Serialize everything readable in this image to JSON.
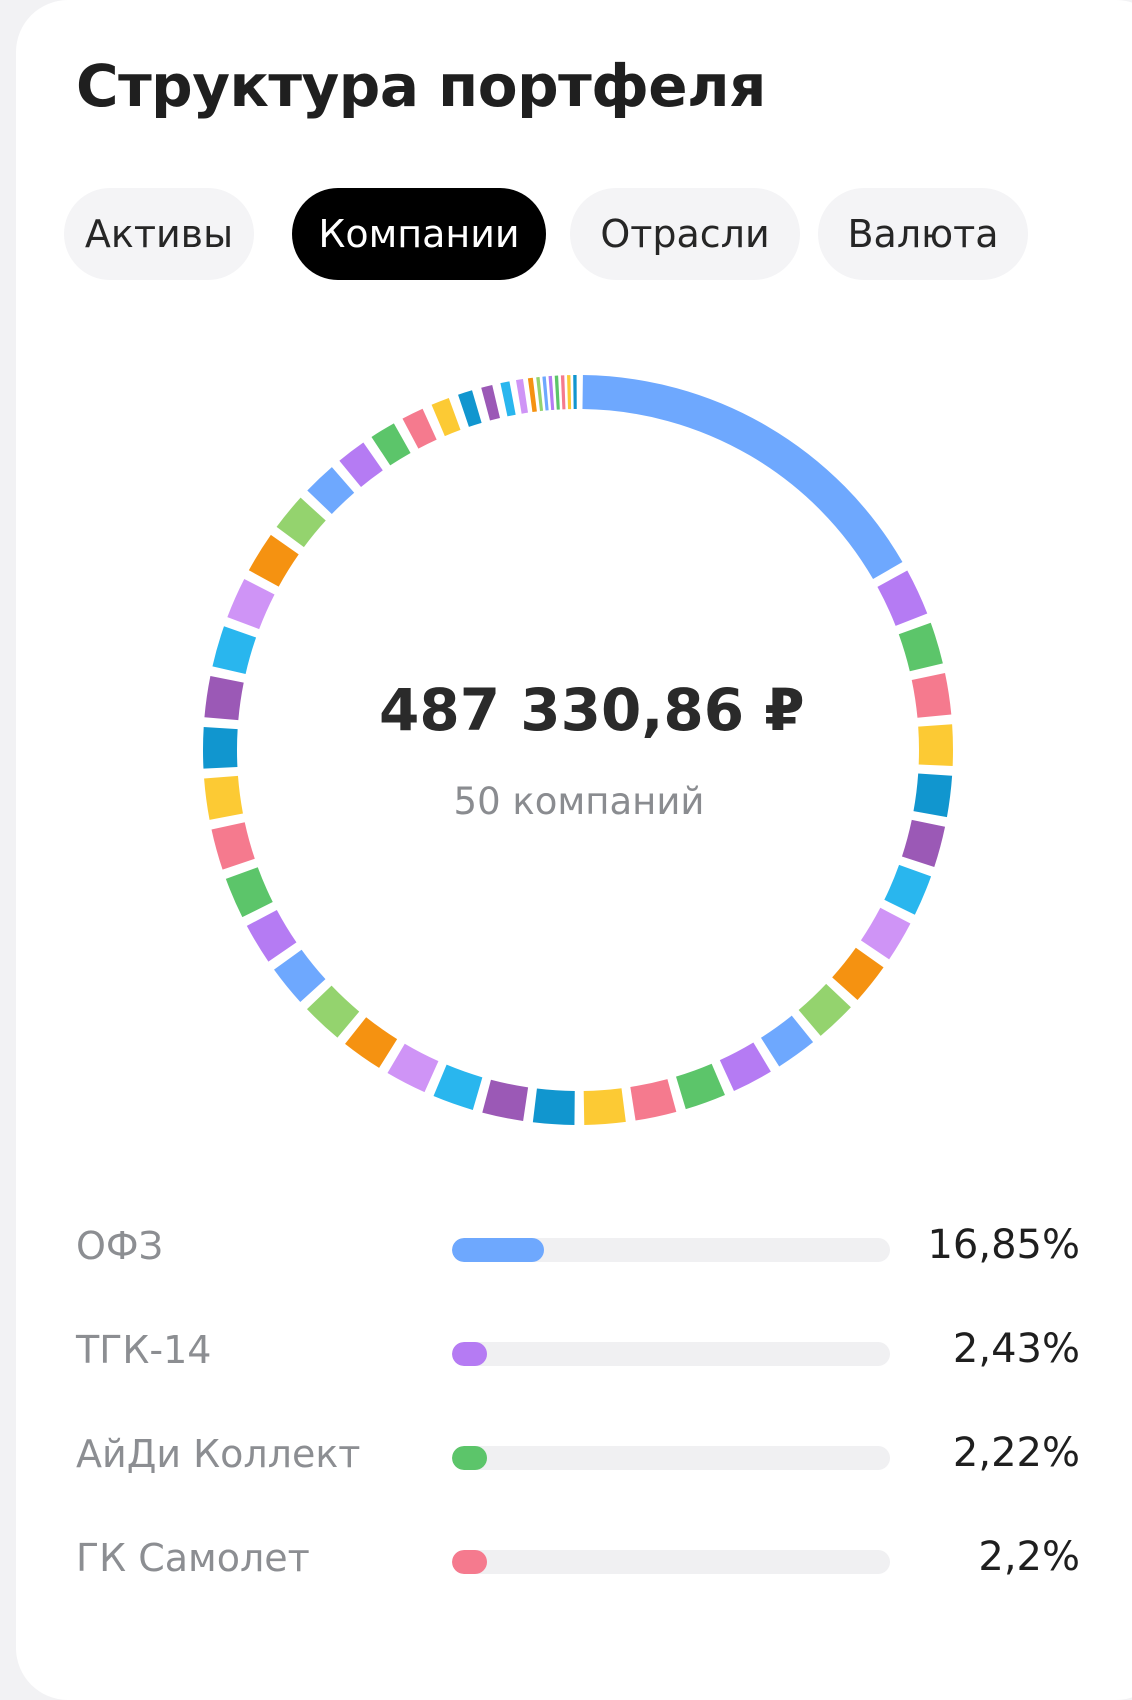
{
  "header": {
    "title": "Структура портфеля"
  },
  "tabs": [
    {
      "label": "Активы",
      "active": false
    },
    {
      "label": "Компании",
      "active": true
    },
    {
      "label": "Отрасли",
      "active": false
    },
    {
      "label": "Валюта",
      "active": false
    }
  ],
  "summary": {
    "total": "487 330,86 ₽",
    "count_label": "50 компаний"
  },
  "colors": {
    "palette": [
      "#6ea8fe",
      "#b57bf3",
      "#5cc56a",
      "#f57a8e",
      "#fcca34",
      "#1196cf",
      "#9b59b6",
      "#29b6ee",
      "#cf94f6",
      "#f59211",
      "#94d36e"
    ],
    "track": "#f0f0f2",
    "tab_active_bg": "#000000",
    "tab_bg": "#f4f4f6"
  },
  "chart_data": {
    "type": "pie",
    "style": "donut",
    "slice_count": 50,
    "series": [
      {
        "name": "ОФЗ",
        "value": 16.85,
        "color": "#6ea8fe"
      },
      {
        "name": "ТГК-14",
        "value": 2.43,
        "color": "#b57bf3"
      },
      {
        "name": "АйДи Коллект",
        "value": 2.22,
        "color": "#5cc56a"
      },
      {
        "name": "ГК Самолет",
        "value": 2.2,
        "color": "#f57a8e"
      }
    ]
  },
  "legend": [
    {
      "name": "ОФЗ",
      "percent": "16,85%",
      "value": 16.85,
      "color": "#6ea8fe"
    },
    {
      "name": "ТГК-14",
      "percent": "2,43%",
      "value": 2.43,
      "color": "#b57bf3"
    },
    {
      "name": "АйДи Коллект",
      "percent": "2,22%",
      "value": 2.22,
      "color": "#5cc56a"
    },
    {
      "name": "ГК Самолет",
      "percent": "2,2%",
      "value": 2.2,
      "color": "#f57a8e"
    }
  ]
}
